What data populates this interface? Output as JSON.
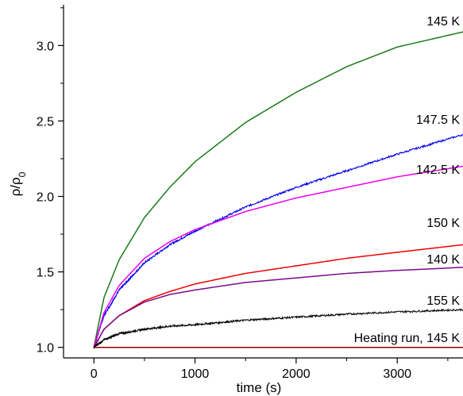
{
  "chart_data": {
    "type": "line",
    "xlabel": "time (s)",
    "ylabel": {
      "base": "ρ/ρ",
      "sub": "0"
    },
    "xlim": [
      -300,
      3650
    ],
    "ylim": [
      0.93,
      3.27
    ],
    "xticks": [
      0,
      1000,
      2000,
      3000
    ],
    "xtick_labels": [
      "0",
      "1000",
      "2000",
      "3000"
    ],
    "yticks": [
      1.0,
      1.5,
      2.0,
      2.5,
      3.0
    ],
    "ytick_labels": [
      "1.0",
      "1.5",
      "2.0",
      "2.5",
      "3.0"
    ],
    "grid": false,
    "legend": "none (curves labeled directly)",
    "series": [
      {
        "name": "145 K",
        "color": "#1a7a1a",
        "noisy": false,
        "x": [
          0,
          100,
          250,
          500,
          750,
          1000,
          1500,
          2000,
          2500,
          3000,
          3650
        ],
        "y": [
          1.0,
          1.33,
          1.58,
          1.86,
          2.06,
          2.23,
          2.49,
          2.69,
          2.86,
          2.99,
          3.09
        ]
      },
      {
        "name": "147.5 K",
        "color": "#0000ee",
        "noisy": true,
        "x": [
          0,
          100,
          250,
          500,
          750,
          1000,
          1500,
          2000,
          2500,
          3000,
          3650
        ],
        "y": [
          1.0,
          1.21,
          1.38,
          1.56,
          1.68,
          1.77,
          1.93,
          2.06,
          2.17,
          2.28,
          2.41
        ]
      },
      {
        "name": "142.5 K",
        "color": "#ee00ee",
        "noisy": false,
        "x": [
          0,
          100,
          250,
          500,
          750,
          1000,
          1500,
          2000,
          2500,
          3000,
          3650
        ],
        "y": [
          1.0,
          1.23,
          1.41,
          1.59,
          1.7,
          1.78,
          1.9,
          1.99,
          2.06,
          2.13,
          2.2
        ]
      },
      {
        "name": "150 K",
        "color": "#ee0000",
        "noisy": false,
        "x": [
          0,
          100,
          250,
          500,
          750,
          1000,
          1500,
          2000,
          2500,
          3000,
          3650
        ],
        "y": [
          1.0,
          1.12,
          1.21,
          1.31,
          1.37,
          1.42,
          1.49,
          1.54,
          1.59,
          1.63,
          1.68
        ]
      },
      {
        "name": "140 K",
        "color": "#7a0a8a",
        "noisy": false,
        "x": [
          0,
          100,
          250,
          500,
          750,
          1000,
          1500,
          2000,
          2500,
          3000,
          3650
        ],
        "y": [
          1.0,
          1.12,
          1.21,
          1.3,
          1.35,
          1.38,
          1.43,
          1.46,
          1.49,
          1.51,
          1.53
        ]
      },
      {
        "name": "155 K",
        "color": "#000000",
        "noisy": true,
        "x": [
          0,
          100,
          250,
          500,
          750,
          1000,
          1500,
          2000,
          2500,
          3000,
          3650
        ],
        "y": [
          1.0,
          1.05,
          1.09,
          1.12,
          1.14,
          1.15,
          1.18,
          1.2,
          1.22,
          1.235,
          1.25
        ]
      },
      {
        "name": "Heating run, 145 K",
        "color": "#8b0000",
        "noisy": false,
        "x": [
          0,
          3650
        ],
        "y": [
          1.0,
          1.0
        ]
      }
    ],
    "annotations": [
      {
        "text": "145 K",
        "series": "145 K"
      },
      {
        "text": "147.5 K",
        "series": "147.5 K"
      },
      {
        "text": "142.5 K",
        "series": "142.5 K"
      },
      {
        "text": "150 K",
        "series": "150 K"
      },
      {
        "text": "140 K",
        "series": "140 K"
      },
      {
        "text": "155 K",
        "series": "155 K"
      },
      {
        "text": "Heating run, 145 K",
        "series": "Heating run, 145 K"
      }
    ]
  }
}
